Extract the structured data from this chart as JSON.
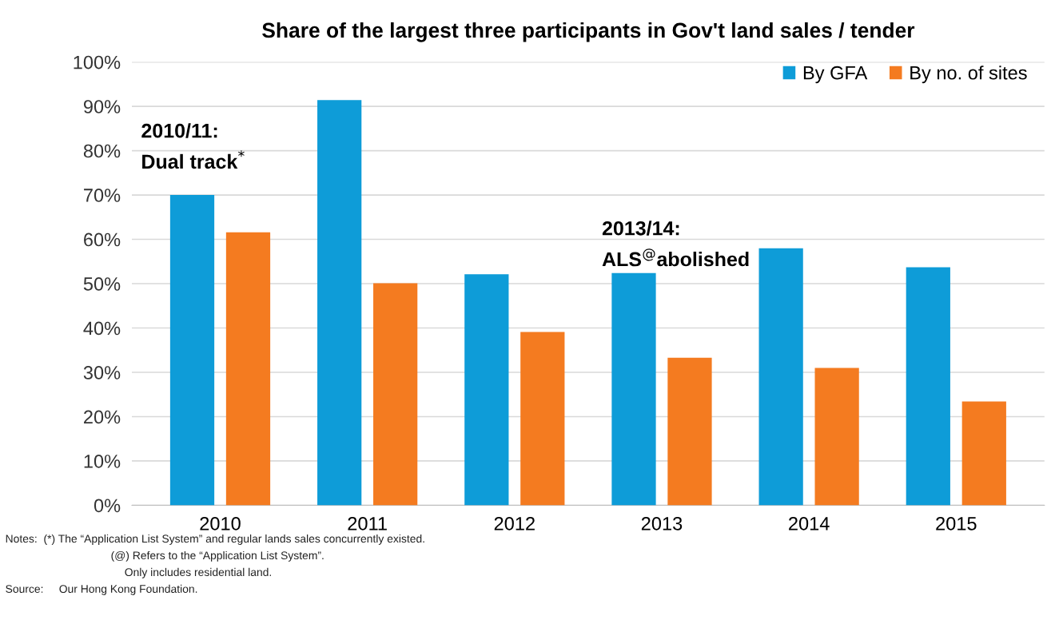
{
  "chart_data": {
    "type": "bar",
    "title": "Share of the largest three participants in Gov't land sales / tender",
    "categories": [
      "2010",
      "2011",
      "2012",
      "2013",
      "2014",
      "2015"
    ],
    "series": [
      {
        "name": "By GFA",
        "color": "#0e9cd8",
        "values": [
          70,
          91.4,
          52.1,
          52.4,
          58,
          53.7
        ]
      },
      {
        "name": "By no. of sites",
        "color": "#f47b20",
        "values": [
          61.6,
          50.1,
          39.1,
          33.3,
          31,
          23.4
        ]
      }
    ],
    "ylim": [
      0,
      100
    ],
    "yticks": [
      {
        "value": 0,
        "label": "0%"
      },
      {
        "value": 10,
        "label": "10%"
      },
      {
        "value": 20,
        "label": "20%"
      },
      {
        "value": 30,
        "label": "30%"
      },
      {
        "value": 40,
        "label": "40%"
      },
      {
        "value": 50,
        "label": "50%"
      },
      {
        "value": 60,
        "label": "60%"
      },
      {
        "value": 70,
        "label": "70%"
      },
      {
        "value": 80,
        "label": "80%"
      },
      {
        "value": 90,
        "label": "90%"
      },
      {
        "value": 100,
        "label": "100%"
      }
    ],
    "grid": "y",
    "legend": "top right",
    "annotations": [
      "2010/11:",
      "Dual track$^{*}$",
      "2013/14:",
      "ALS$^{@}$abolished",
      "Notes:  (*) The “Application List System” and regular lands sales concurrently existed.",
      "(@) Refers to the “Application List System”.",
      "Only includes residential land.",
      "Source:     Our Hong Kong Foundation."
    ]
  }
}
